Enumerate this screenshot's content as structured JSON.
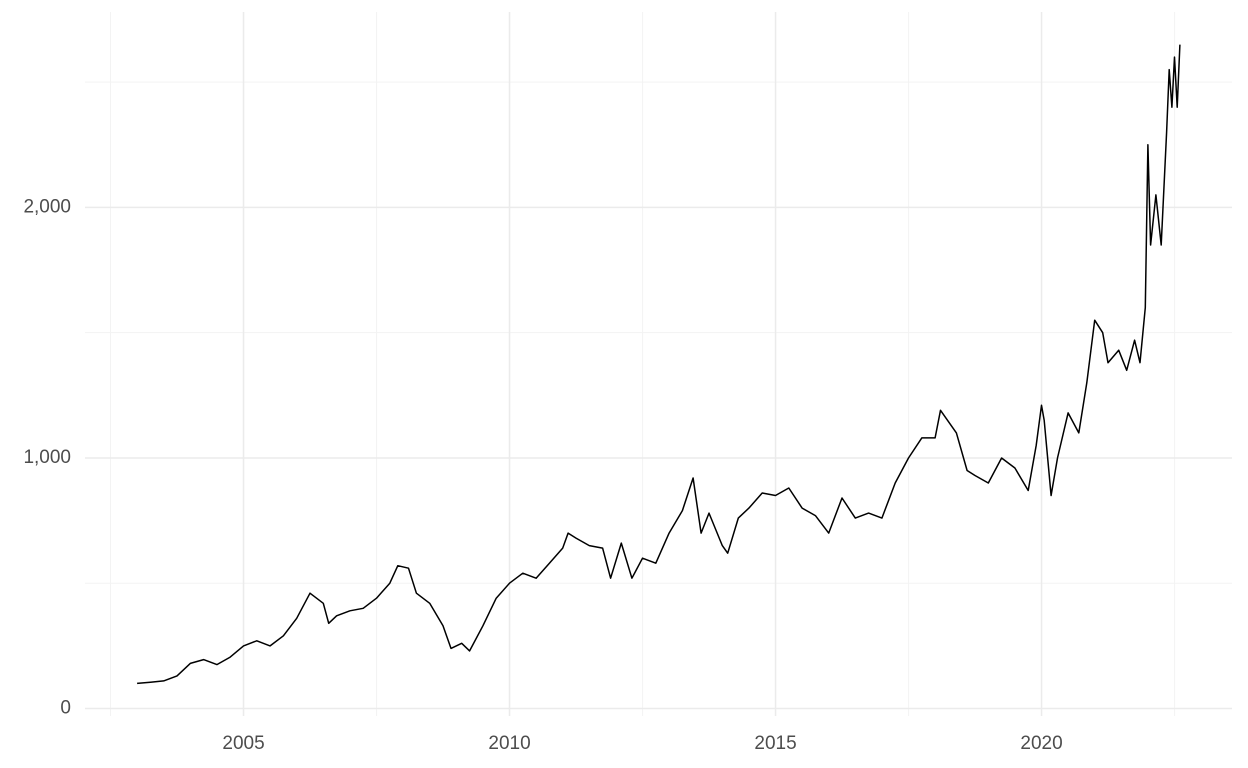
{
  "chart_data": {
    "type": "line",
    "x": [
      2003.0,
      2003.25,
      2003.5,
      2003.75,
      2004.0,
      2004.25,
      2004.5,
      2004.75,
      2005.0,
      2005.25,
      2005.5,
      2005.75,
      2006.0,
      2006.25,
      2006.5,
      2006.6,
      2006.75,
      2007.0,
      2007.25,
      2007.5,
      2007.75,
      2007.9,
      2008.1,
      2008.25,
      2008.5,
      2008.75,
      2008.9,
      2009.1,
      2009.25,
      2009.5,
      2009.75,
      2010.0,
      2010.25,
      2010.5,
      2010.75,
      2011.0,
      2011.1,
      2011.25,
      2011.5,
      2011.75,
      2011.9,
      2012.1,
      2012.3,
      2012.5,
      2012.75,
      2013.0,
      2013.25,
      2013.45,
      2013.6,
      2013.75,
      2014.0,
      2014.1,
      2014.3,
      2014.5,
      2014.75,
      2015.0,
      2015.25,
      2015.5,
      2015.75,
      2016.0,
      2016.25,
      2016.5,
      2016.75,
      2017.0,
      2017.25,
      2017.5,
      2017.75,
      2018.0,
      2018.1,
      2018.4,
      2018.6,
      2018.75,
      2019.0,
      2019.25,
      2019.5,
      2019.75,
      2019.9,
      2020.0,
      2020.05,
      2020.18,
      2020.3,
      2020.5,
      2020.7,
      2020.85,
      2021.0,
      2021.15,
      2021.25,
      2021.45,
      2021.6,
      2021.75,
      2021.85,
      2021.95,
      2022.0,
      2022.05,
      2022.15,
      2022.25,
      2022.35,
      2022.4,
      2022.45,
      2022.5,
      2022.55,
      2022.6
    ],
    "series": [
      {
        "color": "#000000",
        "values": [
          100,
          105,
          110,
          130,
          180,
          195,
          175,
          205,
          250,
          270,
          250,
          290,
          360,
          460,
          420,
          340,
          370,
          390,
          400,
          440,
          500,
          570,
          560,
          460,
          420,
          330,
          240,
          260,
          230,
          330,
          440,
          500,
          540,
          520,
          580,
          640,
          700,
          680,
          650,
          640,
          520,
          660,
          520,
          600,
          580,
          700,
          790,
          920,
          700,
          780,
          650,
          620,
          760,
          800,
          860,
          850,
          880,
          800,
          770,
          700,
          840,
          760,
          780,
          760,
          900,
          1000,
          1080,
          1080,
          1190,
          1100,
          950,
          930,
          900,
          1000,
          960,
          870,
          1050,
          1210,
          1150,
          850,
          1000,
          1180,
          1100,
          1300,
          1550,
          1500,
          1380,
          1430,
          1350,
          1470,
          1380,
          1600,
          2250,
          1850,
          2050,
          1850,
          2300,
          2550,
          2400,
          2600,
          2400,
          2650
        ]
      }
    ],
    "xlim": [
      2002.02,
      2023.58
    ],
    "ylim": [
      -30,
      2780
    ],
    "xticks": [
      2005,
      2010,
      2015,
      2020
    ],
    "yticks": [
      0,
      {
        "value": 1000,
        "label": "1,000"
      },
      {
        "value": 2000,
        "label": "2,000"
      }
    ],
    "xticks_minor": [
      2002.5,
      2007.5,
      2012.5,
      2017.5,
      2022.5
    ],
    "yticks_minor": [
      500,
      1500,
      2500
    ],
    "grid": true
  }
}
